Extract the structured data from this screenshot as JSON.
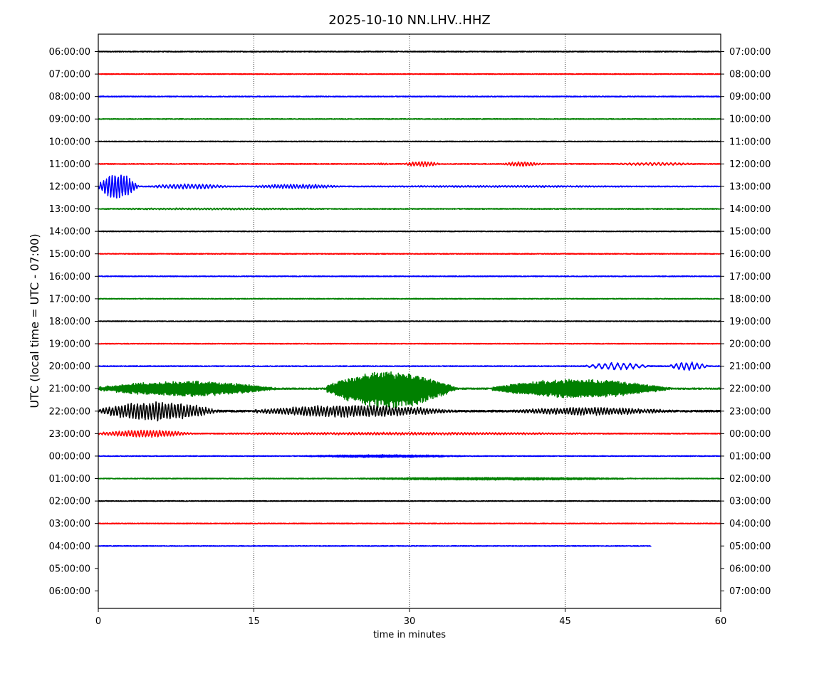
{
  "chart_data": {
    "type": "line",
    "title": "2025-10-10 NN.LHV..HHZ",
    "xlabel": "time in minutes",
    "ylabel": "UTC (local time = UTC - 07:00)",
    "xlim": [
      0,
      60
    ],
    "x_ticks": [
      "0",
      "15",
      "30",
      "45",
      "60"
    ],
    "x_tick_values": [
      0,
      15,
      30,
      45,
      60
    ],
    "grid": "vertical dotted lines at 15, 30, 45",
    "trace_colors": [
      "#000000",
      "#ff0000",
      "#0000ff",
      "#008000"
    ],
    "left_labels": [
      "06:00:00",
      "07:00:00",
      "08:00:00",
      "09:00:00",
      "10:00:00",
      "11:00:00",
      "12:00:00",
      "13:00:00",
      "14:00:00",
      "15:00:00",
      "16:00:00",
      "17:00:00",
      "18:00:00",
      "19:00:00",
      "20:00:00",
      "21:00:00",
      "22:00:00",
      "23:00:00",
      "00:00:00",
      "01:00:00",
      "02:00:00",
      "03:00:00",
      "04:00:00",
      "05:00:00",
      "06:00:00"
    ],
    "right_labels": [
      "07:00:00",
      "08:00:00",
      "09:00:00",
      "10:00:00",
      "11:00:00",
      "12:00:00",
      "13:00:00",
      "14:00:00",
      "15:00:00",
      "16:00:00",
      "17:00:00",
      "18:00:00",
      "19:00:00",
      "20:00:00",
      "21:00:00",
      "22:00:00",
      "23:00:00",
      "00:00:00",
      "01:00:00",
      "02:00:00",
      "03:00:00",
      "04:00:00",
      "05:00:00",
      "06:00:00",
      "07:00:00"
    ],
    "traces": [
      {
        "row": 0,
        "color": "#000000",
        "start": 0,
        "end": 60,
        "noise": 0.6,
        "bursts": []
      },
      {
        "row": 1,
        "color": "#ff0000",
        "start": 0,
        "end": 60,
        "noise": 0.5,
        "bursts": []
      },
      {
        "row": 2,
        "color": "#0000ff",
        "start": 0,
        "end": 60,
        "noise": 0.6,
        "bursts": []
      },
      {
        "row": 3,
        "color": "#008000",
        "start": 0,
        "end": 60,
        "noise": 0.5,
        "bursts": []
      },
      {
        "row": 4,
        "color": "#000000",
        "start": 0,
        "end": 60,
        "noise": 0.5,
        "bursts": []
      },
      {
        "row": 5,
        "color": "#ff0000",
        "start": 0,
        "end": 60,
        "noise": 0.6,
        "bursts": [
          [
            26,
            29,
            0.8,
            0.25
          ],
          [
            29.5,
            34,
            3.5,
            0.3
          ],
          [
            39,
            44,
            3.0,
            0.3
          ],
          [
            50,
            60,
            1.8,
            0.4
          ]
        ]
      },
      {
        "row": 6,
        "color": "#0000ff",
        "start": 0,
        "end": 60,
        "noise": 0.6,
        "bursts": [
          [
            0,
            5,
            18,
            0.28
          ],
          [
            5,
            15,
            3.5,
            0.35
          ],
          [
            15,
            26,
            3.0,
            0.3
          ],
          [
            26,
            60,
            0.9,
            0.3
          ]
        ]
      },
      {
        "row": 7,
        "color": "#008000",
        "start": 0,
        "end": 60,
        "noise": 0.6,
        "bursts": [
          [
            0,
            30,
            0.9,
            0.3
          ]
        ]
      },
      {
        "row": 8,
        "color": "#000000",
        "start": 0,
        "end": 60,
        "noise": 0.5,
        "bursts": []
      },
      {
        "row": 9,
        "color": "#ff0000",
        "start": 0,
        "end": 60,
        "noise": 0.5,
        "bursts": []
      },
      {
        "row": 10,
        "color": "#0000ff",
        "start": 0,
        "end": 60,
        "noise": 0.5,
        "bursts": []
      },
      {
        "row": 11,
        "color": "#008000",
        "start": 0,
        "end": 60,
        "noise": 0.5,
        "bursts": []
      },
      {
        "row": 12,
        "color": "#000000",
        "start": 0,
        "end": 60,
        "noise": 0.5,
        "bursts": []
      },
      {
        "row": 13,
        "color": "#ff0000",
        "start": 0,
        "end": 60,
        "noise": 0.5,
        "bursts": []
      },
      {
        "row": 14,
        "color": "#0000ff",
        "start": 0,
        "end": 60,
        "noise": 0.6,
        "bursts": [
          [
            47,
            55,
            5,
            0.6
          ],
          [
            55,
            60,
            6,
            0.5
          ]
        ]
      },
      {
        "row": 15,
        "color": "#008000",
        "start": 0,
        "end": 60,
        "noise": 1.0,
        "bursts": [
          [
            0,
            22,
            11,
            0.12
          ],
          [
            22,
            38,
            28,
            0.1
          ],
          [
            38,
            60,
            14,
            0.12
          ]
        ]
      },
      {
        "row": 16,
        "color": "#000000",
        "start": 0,
        "end": 60,
        "noise": 1.2,
        "bursts": [
          [
            0,
            15,
            13,
            0.3
          ],
          [
            15,
            40,
            8,
            0.3
          ],
          [
            40,
            60,
            5,
            0.3
          ]
        ]
      },
      {
        "row": 17,
        "color": "#ff0000",
        "start": 0,
        "end": 60,
        "noise": 0.6,
        "bursts": [
          [
            0,
            12,
            5,
            0.3
          ],
          [
            12,
            60,
            1.5,
            0.3
          ]
        ]
      },
      {
        "row": 18,
        "color": "#0000ff",
        "start": 0,
        "end": 60,
        "noise": 0.5,
        "bursts": [
          [
            20,
            40,
            2.0,
            0.08
          ]
        ]
      },
      {
        "row": 19,
        "color": "#008000",
        "start": 0,
        "end": 60,
        "noise": 0.5,
        "bursts": [
          [
            25,
            60,
            2.0,
            0.06
          ]
        ]
      },
      {
        "row": 20,
        "color": "#000000",
        "start": 0,
        "end": 60,
        "noise": 0.5,
        "bursts": []
      },
      {
        "row": 21,
        "color": "#ff0000",
        "start": 0,
        "end": 60,
        "noise": 0.5,
        "bursts": []
      },
      {
        "row": 22,
        "color": "#0000ff",
        "start": 0,
        "end": 53.3,
        "noise": 0.5,
        "bursts": []
      }
    ]
  }
}
